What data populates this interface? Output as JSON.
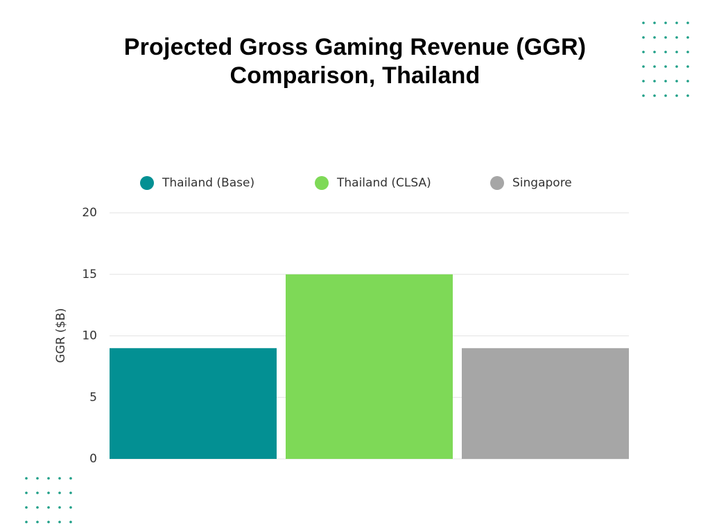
{
  "chart_data": {
    "type": "bar",
    "title": "Projected Gross Gaming Revenue (GGR) Comparison, Thailand",
    "y_label": "GGR ($B)",
    "categories": [
      null
    ],
    "series": [
      {
        "name": "Thailand (Base)",
        "color": "#039093",
        "values": [
          9
        ]
      },
      {
        "name": "Thailand (CLSA)",
        "color": "#7ed957",
        "values": [
          15
        ]
      },
      {
        "name": "Singapore",
        "color": "#a6a6a6",
        "values": [
          9
        ]
      }
    ],
    "ylim": [
      0,
      20
    ],
    "yticks": [
      0,
      5,
      10,
      15,
      20
    ],
    "grid": true,
    "legend": "top"
  }
}
